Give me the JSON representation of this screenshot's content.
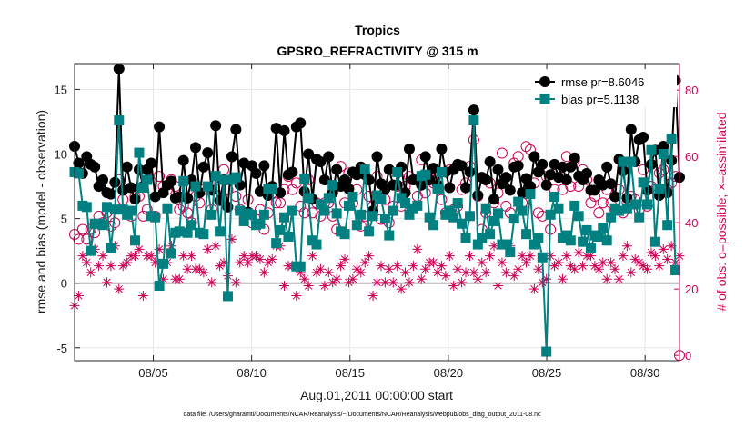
{
  "chart_data": {
    "type": "line",
    "title": "Tropics",
    "subtitle": "GPSRO_REFRACTIVITY @ 315 m",
    "xlabel": "Aug.01,2011 00:00:00 start",
    "ylabel": "rmse and bias (model - observation)",
    "ylabel_right": "# of obs: o=possible; ×=assimilated",
    "footnote": "data file: /Users/gharamti/Documents/NCAR/Reanalysis/~/Documents/NCAR/Reanalysis/webpub/obs_diag_output_2011-08.nc",
    "xlim": [
      1,
      31.75
    ],
    "ylim": [
      -6,
      17
    ],
    "ylim_right": [
      -1.6,
      88
    ],
    "x_ticks": [
      5,
      10,
      15,
      20,
      25,
      30
    ],
    "x_tick_labels": [
      "08/05",
      "08/10",
      "08/15",
      "08/20",
      "08/25",
      "08/30"
    ],
    "y_ticks": [
      -5,
      0,
      5,
      10,
      15
    ],
    "y_tick_labels": [
      "-5",
      "0",
      "5",
      "10",
      "15"
    ],
    "y2_ticks": [
      0,
      20,
      40,
      60,
      80
    ],
    "y2_tick_labels": [
      "0",
      "20",
      "40",
      "60",
      "80"
    ],
    "grid": true,
    "legend_position": "top-right",
    "zero_line": 0,
    "colors": {
      "rmse": "#000000",
      "bias": "#008080",
      "obs": "#cc0055",
      "zero": "#b3b3b3"
    },
    "series": [
      {
        "name": "rmse",
        "legend": "rmse pr=8.6046",
        "values": [
          10.6,
          9.3,
          8.5,
          9.8,
          9.2,
          9.0,
          7.5,
          8.0,
          7.0,
          6.9,
          7.8,
          16.6,
          7.2,
          9.0,
          7.4,
          6.5,
          8.8,
          7.5,
          8.8,
          9.3,
          6.7,
          12.1,
          7.0,
          7.6,
          7.9,
          6.6,
          6.7,
          9.5,
          6.6,
          8.0,
          10.5,
          7.0,
          9.0,
          10.1,
          7.2,
          12.2,
          6.4,
          8.0,
          5.9,
          9.8,
          11.9,
          7.6,
          9.3,
          5.5,
          9.1,
          8.5,
          7.1,
          9.1,
          6.8,
          7.5,
          12.0,
          7.0,
          11.8,
          8.4,
          8.6,
          12.1,
          12.4,
          7.1,
          10.0,
          6.5,
          9.6,
          9.4,
          8.0,
          9.8,
          7.0,
          8.8,
          7.5,
          8.0,
          7.3,
          8.6,
          8.4,
          9.0,
          8.4,
          8.0,
          5.6,
          9.8,
          7.7,
          7.3,
          8.8,
          7.6,
          7.6,
          9.0,
          7.0,
          10.4,
          8.0,
          8.0,
          7.6,
          9.8,
          8.0,
          8.9,
          7.6,
          10.4,
          8.6,
          7.4,
          8.8,
          9.2,
          9.1,
          7.4,
          8.6,
          13.4,
          6.8,
          8.2,
          8.0,
          9.4,
          6.5,
          8.8,
          7.7,
          8.2,
          7.2,
          9.0,
          9.1,
          7.0,
          8.1,
          7.5,
          9.8,
          8.6,
          9.2,
          7.6,
          8.4,
          9.2,
          8.2,
          9.0,
          8.0,
          9.0,
          9.7,
          8.3,
          8.0,
          8.5,
          7.2,
          7.2,
          8.0,
          7.6,
          9.0,
          7.7,
          6.7,
          9.6,
          8.7,
          6.6,
          11.9,
          9.4,
          11.1,
          11.3,
          7.2,
          9.2,
          10.3,
          6.8,
          10.6,
          7.0,
          9.5,
          15.7,
          8.2
        ]
      },
      {
        "name": "bias",
        "legend": "bias pr=5.1138",
        "values": [
          8.6,
          8.5,
          6.0,
          5.9,
          2.5,
          4.6,
          4.6,
          4.5,
          5.9,
          2.7,
          5.7,
          12.6,
          5.7,
          5.3,
          5.6,
          3.3,
          10.1,
          7.4,
          8.0,
          5.2,
          5.1,
          -0.2,
          1.5,
          5.8,
          2.3,
          3.9,
          4.0,
          7.9,
          3.9,
          4.5,
          7.5,
          3.9,
          3.8,
          7.5,
          5.3,
          8.3,
          4.0,
          8.0,
          -1.0,
          8.0,
          8.2,
          5.6,
          4.8,
          5.4,
          5.3,
          4.5,
          4.6,
          5.3,
          7.3,
          7.3,
          3.1,
          4.1,
          5.1,
          3.6,
          5.6,
          1.3,
          1.3,
          8.1,
          6.6,
          3.3,
          3.0,
          6.1,
          5.6,
          6.6,
          7.6,
          5.4,
          4.0,
          3.8,
          6.0,
          6.7,
          4.5,
          5.3,
          8.8,
          4.0,
          5.2,
          6.8,
          6.5,
          5.0,
          3.7,
          5.6,
          8.6,
          6.6,
          6.2,
          5.3,
          5.8,
          6.0,
          8.3,
          8.4,
          5.1,
          4.5,
          7.3,
          8.6,
          5.3,
          5.6,
          5.1,
          6.2,
          4.6,
          3.5,
          5.2,
          12.6,
          3.0,
          3.5,
          5.8,
          3.8,
          4.8,
          5.4,
          3.0,
          3.0,
          2.4,
          5.0,
          6.3,
          5.6,
          3.8,
          6.9,
          3.0,
          3.5,
          2.0,
          -5.3,
          5.3,
          6.7,
          5.8,
          3.5,
          3.7,
          3.3,
          6.0,
          5.2,
          3.2,
          4.1,
          2.7,
          3.7,
          3.6,
          4.3,
          3.3,
          5.1,
          5.8,
          5.6,
          9.4,
          5.8,
          9.4,
          6.1,
          5.1,
          7.8,
          6.1,
          10.3,
          3.2,
          7.3,
          10.0,
          4.5,
          11.2,
          1.0
        ]
      },
      {
        "name": "obs_possible",
        "axis": "right",
        "marker": "open-circle",
        "values": [
          36.5,
          35,
          38,
          35,
          38,
          37,
          42,
          40,
          43,
          39,
          40,
          53,
          47,
          43,
          42,
          48,
          48,
          42,
          44,
          56,
          42,
          54,
          51,
          50,
          53,
          51,
          44,
          45,
          43,
          40,
          48,
          46,
          50,
          50,
          44,
          53,
          51,
          56,
          50,
          53,
          48,
          44,
          43,
          47,
          40,
          41,
          44,
          38,
          43,
          49,
          46,
          46,
          50,
          54,
          50,
          52,
          45,
          43,
          53,
          43,
          46,
          42,
          46,
          46,
          42,
          38,
          57,
          46,
          55,
          46,
          50,
          39,
          42,
          48,
          45,
          54,
          41,
          47,
          40,
          45,
          51,
          45,
          51,
          54,
          53,
          48,
          59,
          49,
          54,
          52,
          55,
          47,
          43,
          56,
          44,
          45,
          50,
          52,
          57,
          65,
          48,
          38,
          43,
          52,
          46,
          49,
          61,
          45,
          43,
          58,
          60,
          46,
          63,
          62,
          52,
          43,
          42,
          54,
          38,
          50,
          56,
          50,
          60,
          51,
          59,
          51,
          56,
          53,
          46,
          48,
          43,
          46,
          50,
          46,
          44,
          50,
          43,
          46,
          48,
          47,
          44,
          56,
          45,
          51,
          50,
          55,
          56,
          50,
          52,
          54,
          0
        ]
      },
      {
        "name": "obs_assimilated",
        "axis": "right",
        "marker": "asterisk",
        "values": [
          15,
          18,
          30,
          28,
          25,
          32,
          27,
          30,
          22,
          27,
          33,
          20,
          27,
          28,
          30,
          30,
          32,
          18,
          30,
          30,
          28,
          32,
          23,
          28,
          33,
          23,
          23,
          30,
          26,
          30,
          26,
          26,
          25,
          32,
          22,
          33,
          27,
          28,
          24,
          35,
          22,
          28,
          30,
          28,
          30,
          30,
          29,
          25,
          28,
          29,
          33,
          33,
          21,
          27,
          27,
          18,
          25,
          23,
          21,
          30,
          25,
          26,
          21,
          25,
          22,
          23,
          27,
          29,
          22,
          23,
          26,
          25,
          28,
          30,
          18,
          22,
          27,
          22,
          26,
          22,
          27,
          20,
          25,
          22,
          27,
          32,
          23,
          26,
          28,
          28,
          25,
          27,
          24,
          30,
          21,
          26,
          22,
          25,
          30,
          25,
          23,
          28,
          25,
          30,
          33,
          21,
          28,
          25,
          33,
          24,
          26,
          30,
          28,
          30,
          20,
          26,
          22,
          23,
          30,
          27,
          28,
          23,
          30,
          27,
          26,
          31,
          27,
          30,
          30,
          27,
          26,
          28,
          23,
          28,
          26,
          23,
          30,
          33,
          25,
          29,
          28,
          27,
          26,
          31,
          30,
          27,
          32,
          29,
          33,
          28,
          30
        ]
      }
    ]
  }
}
